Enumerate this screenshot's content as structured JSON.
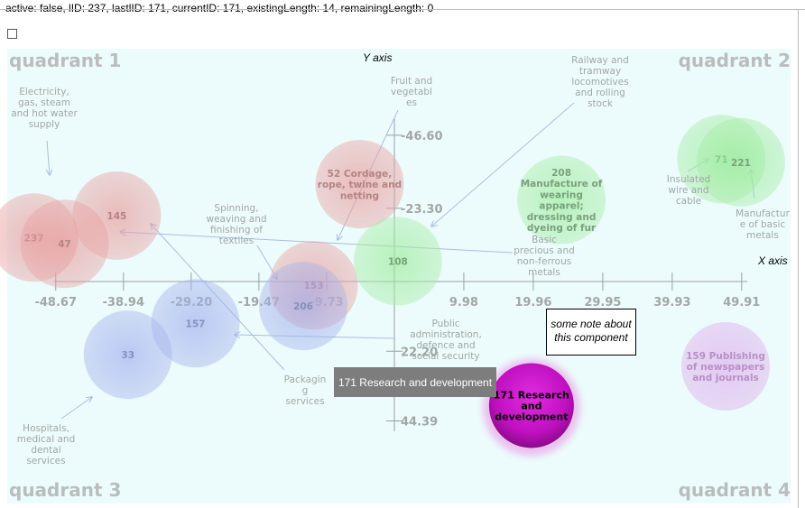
{
  "status_text": "active: false, lID: 237, lastlID: 171, currentID: 171, existingLength: 14, remainingLength: 0",
  "colors": {
    "background": "#ecfcfc",
    "quadrant_label": "#b9bdbd",
    "axis": "#9aa0a0",
    "tick_label": "#a2a6a6",
    "red": "#e8a4a4",
    "green": "#a8eca8",
    "blue": "#a8b4ec",
    "purple": "#e0b4ec",
    "magenta": "#c01cc0",
    "connector": "#a9bdde",
    "label": "#a2a6a6"
  },
  "chart_data": {
    "type": "scatter",
    "xlabel": "X axis",
    "ylabel": "Y axis",
    "quadrant_labels": [
      "quadrant 1",
      "quadrant 2",
      "quadrant 3",
      "quadrant 4"
    ],
    "x_ticks": [
      "-48.67",
      "-38.94",
      "-29.20",
      "-19.47",
      "-9.73",
      "9.98",
      "19.96",
      "29.95",
      "39.93",
      "49.91"
    ],
    "y_ticks": [
      "-46.60",
      "-23.30",
      "22.20",
      "44.39"
    ],
    "grid": false,
    "tooltip": "171 Research and development",
    "note": "some note about this component",
    "bubbles": [
      {
        "id": "237",
        "label": "237",
        "x": -51.8,
        "y": -14,
        "color": "red"
      },
      {
        "id": "47",
        "label": "47",
        "x": -47.4,
        "y": -12,
        "color": "red"
      },
      {
        "id": "145",
        "label": "145",
        "x": -39.9,
        "y": -21,
        "color": "red"
      },
      {
        "id": "52",
        "label": "52 Cordage, rope, twine and netting",
        "x": -5.0,
        "y": -31,
        "color": "red"
      },
      {
        "id": "153",
        "label": "153",
        "x": -11.6,
        "y": 1.2,
        "color": "red"
      },
      {
        "id": "206",
        "label": "206",
        "x": -13.1,
        "y": 7.8,
        "color": "blue"
      },
      {
        "id": "108",
        "label": "108",
        "x": 0.5,
        "y": -6.5,
        "color": "green"
      },
      {
        "id": "208",
        "label": "208 Manufacture of wearing apparel; dressing and dyeing of fur",
        "x": 24.0,
        "y": -26,
        "color": "green"
      },
      {
        "id": "71",
        "label": "71",
        "x": 47.0,
        "y": -39,
        "color": "green"
      },
      {
        "id": "221",
        "label": "221",
        "x": 49.8,
        "y": -38,
        "color": "green"
      },
      {
        "id": "157",
        "label": "157",
        "x": -28.6,
        "y": 13.3,
        "color": "blue"
      },
      {
        "id": "33",
        "label": "33",
        "x": -38.3,
        "y": 23.3,
        "color": "blue"
      },
      {
        "id": "159",
        "label": "159 Publishing of newspapers and journals",
        "x": 47.6,
        "y": 27,
        "color": "purple"
      },
      {
        "id": "171",
        "label": "171 Research and development",
        "x": 19.7,
        "y": 39.5,
        "color": "magenta",
        "selected": true
      }
    ],
    "annotations": [
      {
        "id": "electricity",
        "text": "Electricity, gas, steam and hot water supply",
        "target": "237"
      },
      {
        "id": "fruit",
        "text": "Fruit and vegetables",
        "target": "52"
      },
      {
        "id": "railway",
        "text": "Railway and tramway locomotives and rolling stock",
        "target": "108"
      },
      {
        "id": "insulated",
        "text": "Insulated wire and cable",
        "target": "71"
      },
      {
        "id": "basic-metals",
        "text": "Manufacture of basic metals",
        "target": "221"
      },
      {
        "id": "spinning",
        "text": "Spinning, weaving and finishing of textiles",
        "target": "153"
      },
      {
        "id": "precious",
        "text": "Basic precious and non-ferrous metals",
        "target": "47"
      },
      {
        "id": "public-admin",
        "text": "Public administration, defence and social security",
        "target": "157"
      },
      {
        "id": "packaging",
        "text": "Packaging services",
        "target": "145"
      },
      {
        "id": "hospitals",
        "text": "Hospitals, medical and dental services",
        "target": "33"
      }
    ]
  }
}
